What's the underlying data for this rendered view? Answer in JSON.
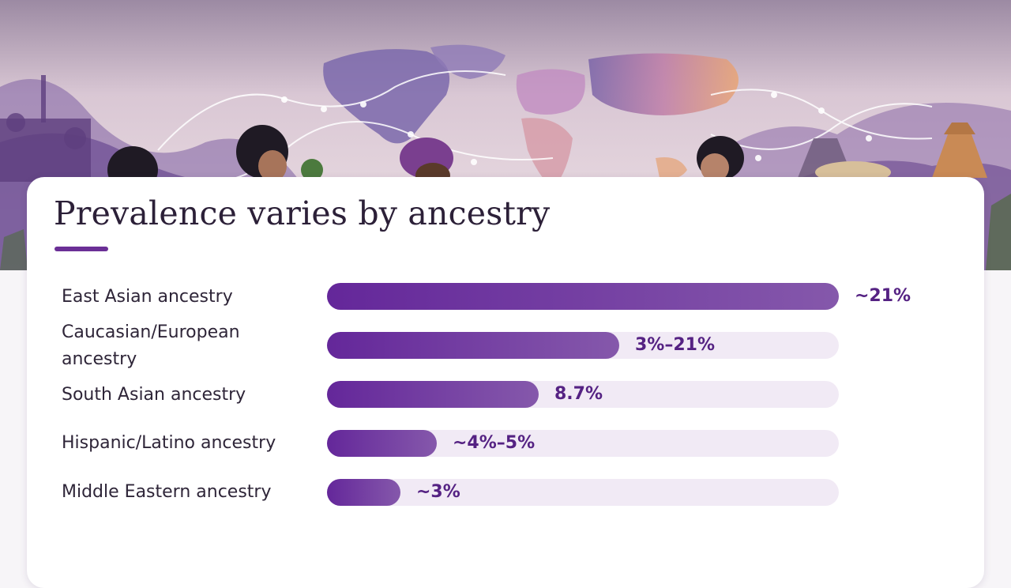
{
  "page": {
    "title": "Prevalence varies by ancestry",
    "colors": {
      "accent": "#6b2f96",
      "bar_start": "#64279a",
      "bar_end": "#8558ab",
      "track": "#f1eaf5",
      "value_text": "#552283",
      "title_text": "#2c2038"
    }
  },
  "banner": {
    "description_icons": [
      "world-map-illustration",
      "dna-helix-illustration",
      "people-illustration",
      "landmarks-illustration"
    ]
  },
  "chart_data": {
    "type": "bar",
    "orientation": "horizontal",
    "title": "Prevalence varies by ancestry",
    "categories": [
      "East Asian ancestry",
      "Caucasian/European ancestry",
      "South Asian ancestry",
      "Hispanic/Latino ancestry",
      "Middle Eastern ancestry"
    ],
    "values": [
      21,
      12,
      8.7,
      4.5,
      3
    ],
    "value_labels": [
      "~21%",
      "3%–21%",
      "8.7%",
      "~4%–5%",
      "~3%"
    ],
    "xlim": [
      0,
      21
    ],
    "grid": false,
    "legend": "none"
  }
}
